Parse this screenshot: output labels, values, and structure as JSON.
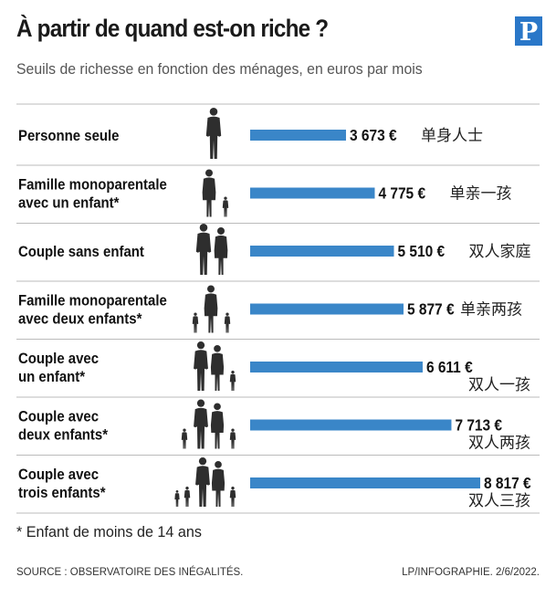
{
  "title": "À partir de quand est-on riche ?",
  "subtitle": "Seuils de richesse en fonction des ménages, en euros par mois",
  "logo": {
    "letter": "P",
    "color": "#2a77c8"
  },
  "footnote": "* Enfant de moins de 14 ans",
  "source": "SOURCE : OBSERVATOIRE DES INÉGALITÉS.",
  "credit": "LP/INFOGRAPHIE.  2/6/2022.",
  "colors": {
    "bar": "#3a86c8",
    "figure": "#2e2e2e",
    "divider": "#bbbbbb"
  },
  "chart_data": {
    "type": "bar",
    "orientation": "horizontal",
    "unit": "€ par mois",
    "categories": [
      "Personne seule",
      "Famille monoparentale avec un enfant*",
      "Couple sans enfant",
      "Famille monoparentale avec deux enfants*",
      "Couple avec un enfant*",
      "Couple avec deux enfants*",
      "Couple avec trois enfants*"
    ],
    "category_lines": [
      [
        "Personne seule"
      ],
      [
        "Famille monoparentale",
        "avec un enfant*"
      ],
      [
        "Couple sans enfant"
      ],
      [
        "Famille monoparentale",
        "avec deux enfants*"
      ],
      [
        "Couple avec",
        "un enfant*"
      ],
      [
        "Couple avec",
        "deux enfants*"
      ],
      [
        "Couple avec",
        "trois enfants*"
      ]
    ],
    "values": [
      3673,
      4775,
      5510,
      5877,
      6611,
      7713,
      8817
    ],
    "value_labels": [
      "3 673 €",
      "4 775 €",
      "5 510 €",
      "5 877 €",
      "6 611 €",
      "7 713 €",
      "8 817 €"
    ],
    "annotations": [
      "单身人士",
      "单亲一孩",
      "双人家庭",
      "单亲两孩",
      "双人一孩",
      "双人两孩",
      "双人三孩"
    ],
    "household_icons": [
      "single-adult-icon",
      "single-parent-one-child-icon",
      "couple-icon",
      "single-parent-two-children-icon",
      "couple-one-child-icon",
      "couple-two-children-icon",
      "couple-three-children-icon"
    ],
    "xlim": [
      0,
      8817
    ],
    "grid": false,
    "legend": "none"
  }
}
